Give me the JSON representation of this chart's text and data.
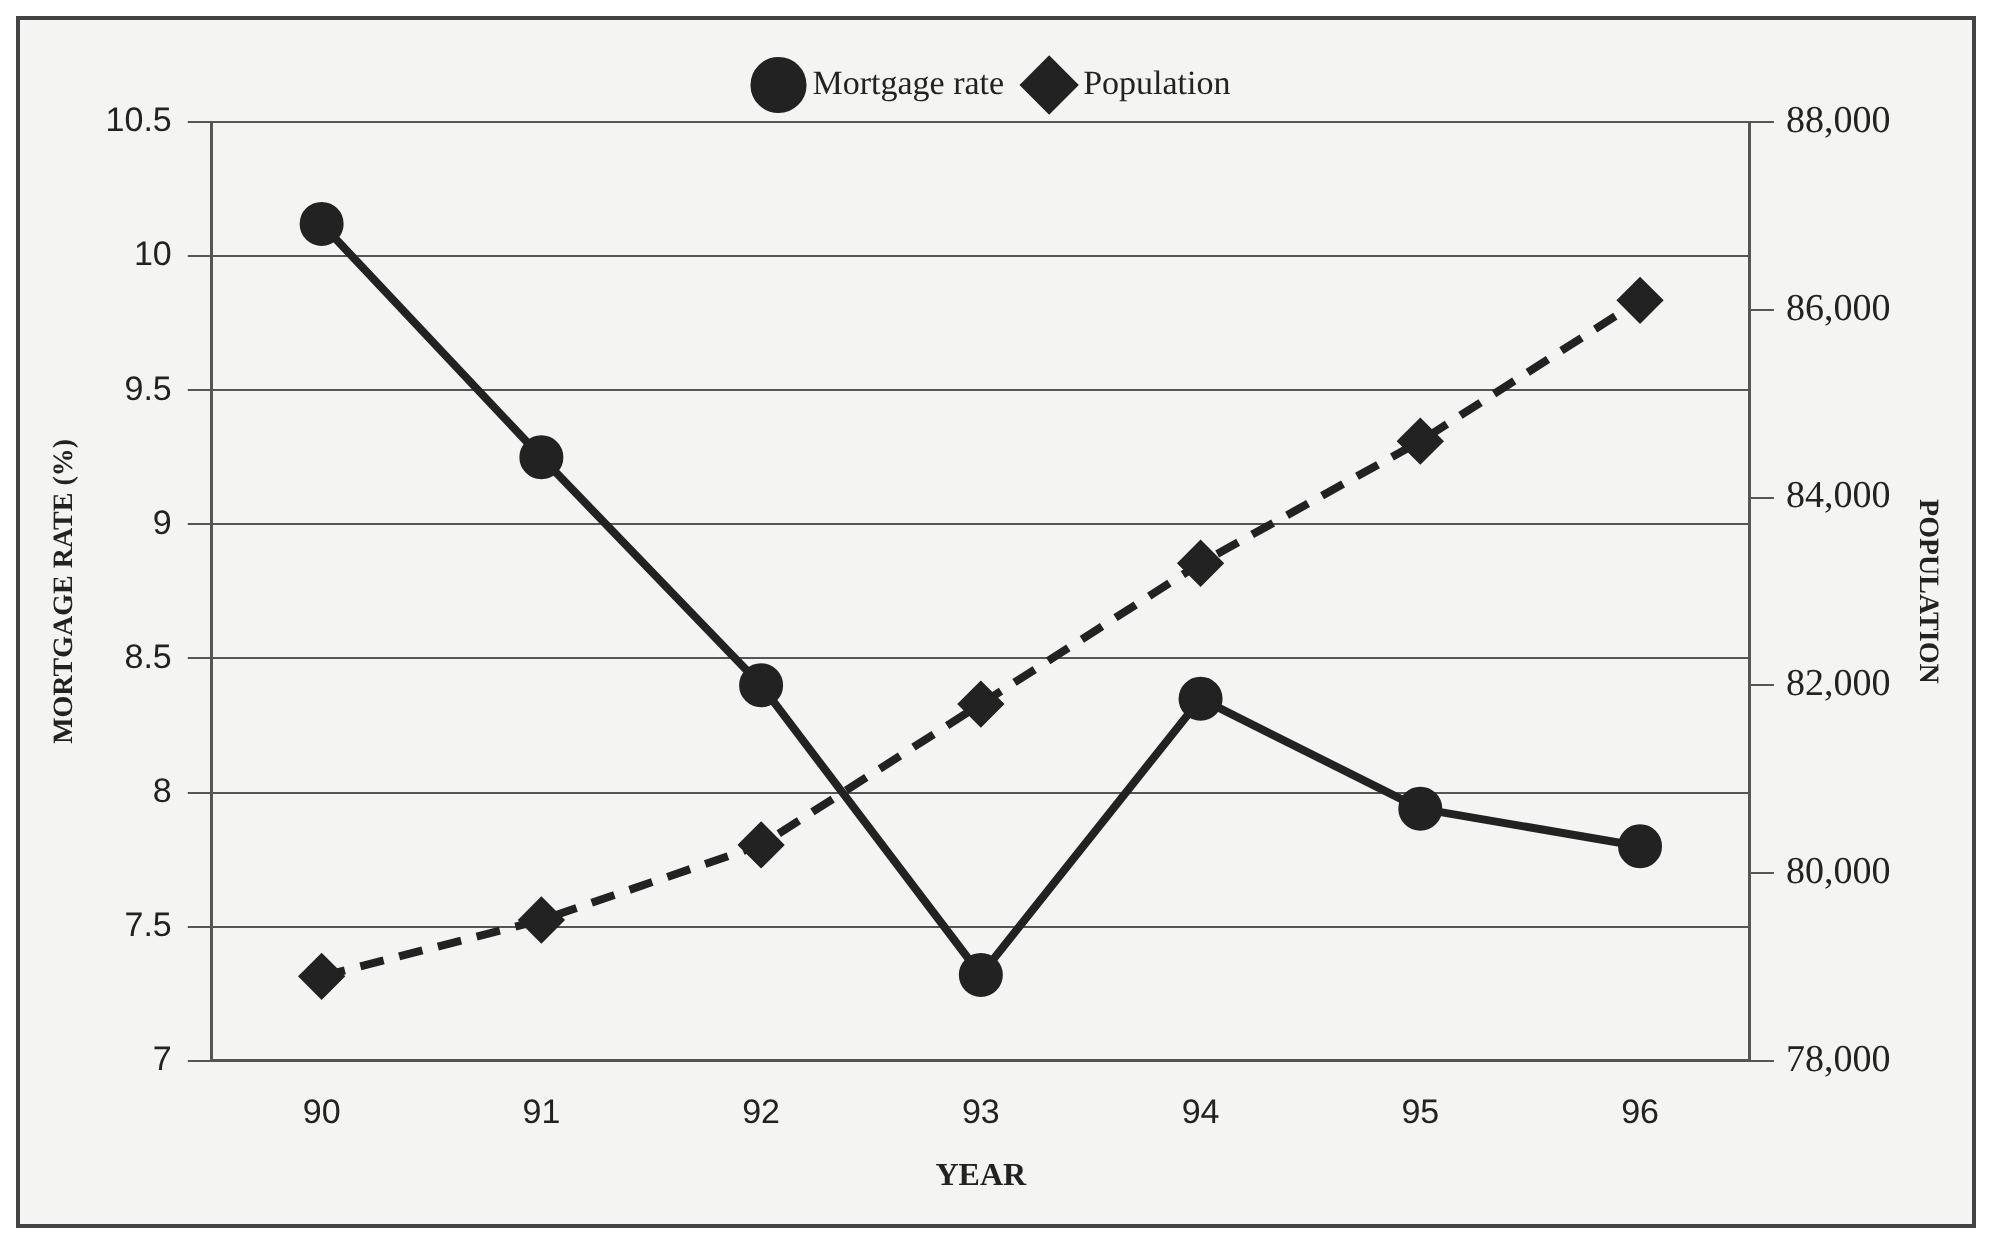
{
  "chart_data": {
    "type": "line",
    "categories": [
      "90",
      "91",
      "92",
      "93",
      "94",
      "95",
      "96"
    ],
    "xlabel": "YEAR",
    "ylabel": "MORTGAGE RATE (%)",
    "y2label": "POPULATION",
    "series": [
      {
        "name": "Mortgage rate",
        "color": "#222222",
        "values": [
          10.12,
          9.25,
          8.4,
          7.32,
          8.35,
          7.94,
          7.8
        ],
        "marker": "circle",
        "line_style": "solid"
      },
      {
        "name": "Population",
        "color": "#222222",
        "values": [
          78900,
          79500,
          80300,
          81800,
          83300,
          84600,
          86100
        ],
        "axis": "y2",
        "marker": "diamond",
        "line_style": "dashed"
      }
    ],
    "ylim": [
      7,
      10.5
    ],
    "yticks": [
      7,
      7.5,
      8,
      8.5,
      9,
      9.5,
      10,
      10.5
    ],
    "y2lim": [
      78000,
      88000
    ],
    "y2ticks": [
      {
        "value": 78000,
        "label": "78,000"
      },
      {
        "value": 80000,
        "label": "80,000"
      },
      {
        "value": 82000,
        "label": "82,000"
      },
      {
        "value": 84000,
        "label": "84,000"
      },
      {
        "value": 86000,
        "label": "86,000"
      },
      {
        "value": 88000,
        "label": "88,000"
      }
    ],
    "grid": "y",
    "legend": "top"
  }
}
